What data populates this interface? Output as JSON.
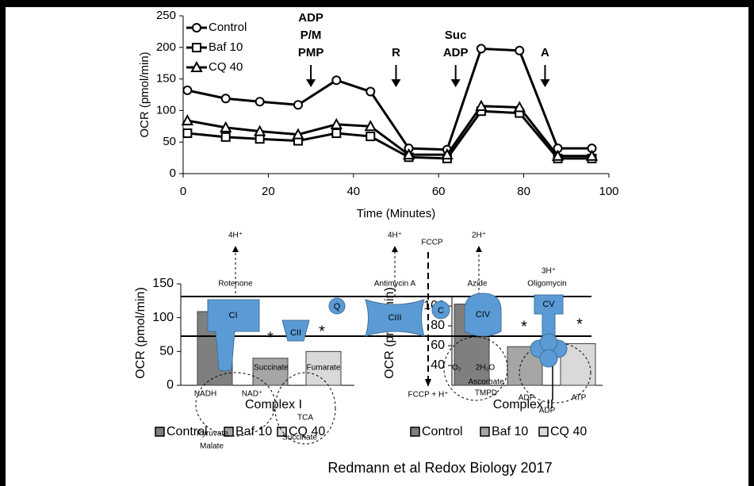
{
  "chart_data": [
    {
      "type": "line",
      "xlabel": "Time (Minutes)",
      "ylabel": "OCR (pmol/min)",
      "xlim": [
        0,
        100
      ],
      "xticks": [
        0,
        20,
        40,
        60,
        80,
        100
      ],
      "ylim": [
        0,
        250
      ],
      "yticks": [
        0,
        50,
        100,
        150,
        200,
        250
      ],
      "x": [
        1,
        10,
        18,
        27,
        36,
        44,
        53,
        62,
        70,
        79,
        88,
        96
      ],
      "series": [
        {
          "name": "Control",
          "color": "#000000",
          "marker": "circle",
          "values": [
            132,
            119,
            114,
            109,
            148,
            130,
            40,
            38,
            198,
            195,
            40,
            40
          ]
        },
        {
          "name": "Baf 10",
          "color": "#000000",
          "marker": "square",
          "values": [
            64,
            58,
            55,
            52,
            64,
            59,
            26,
            24,
            99,
            96,
            24,
            24
          ]
        },
        {
          "name": "CQ 40",
          "color": "#000000",
          "marker": "triangle",
          "values": [
            84,
            73,
            67,
            62,
            78,
            75,
            30,
            30,
            107,
            105,
            28,
            28
          ]
        }
      ],
      "annotations": [
        {
          "x": 30,
          "lines": [
            "ADP",
            "P/M",
            "PMP"
          ]
        },
        {
          "x": 50,
          "lines": [
            "R"
          ]
        },
        {
          "x": 64,
          "lines": [
            "Suc",
            "ADP"
          ]
        },
        {
          "x": 85,
          "lines": [
            "A"
          ]
        }
      ]
    },
    {
      "type": "bar",
      "xlabel": "Complex I",
      "ylabel": "OCR (pmol/min)",
      "categories": [
        null
      ],
      "ylim": [
        0,
        150
      ],
      "yticks": [
        0,
        50,
        100,
        150
      ],
      "series": [
        {
          "name": "Control",
          "color": "#7f7f7f",
          "values": [
            109
          ]
        },
        {
          "name": "Baf 10",
          "color": "#a6a6a6",
          "values": [
            40
          ]
        },
        {
          "name": "CQ 40",
          "color": "#d9d9d9",
          "values": [
            50
          ]
        }
      ]
    },
    {
      "type": "bar",
      "xlabel": "Complex II",
      "ylabel": "OCR (pmol/min)",
      "categories": [
        null
      ],
      "ylim": [
        20,
        110
      ],
      "yticks": [
        40,
        60,
        80,
        100
      ],
      "series": [
        {
          "name": "Control",
          "color": "#7f7f7f",
          "values": [
            102
          ]
        },
        {
          "name": "Baf 10",
          "color": "#a6a6a6",
          "values": [
            59
          ]
        },
        {
          "name": "CQ 40",
          "color": "#d9d9d9",
          "values": [
            62
          ]
        }
      ]
    }
  ],
  "diagram": {
    "labels": [
      "4H⁺",
      "Rotenone",
      "NADH",
      "NAD⁺",
      "Succinate",
      "Fumarate",
      "TCA",
      "Pyruvate",
      "Malate",
      "Succinate",
      "4H⁺",
      "Antimycin A",
      "FCCP",
      "FCCP + H⁺",
      "2H⁺",
      "Azide",
      "3H⁺",
      "Oligomycin",
      "O₂",
      "2H₂O",
      "Ascorbate",
      "TMPD",
      "ADP",
      "ATP",
      "ADP",
      "*",
      "*",
      "*",
      "*",
      "CI",
      "CII",
      "Q",
      "CIII",
      "C",
      "CIV",
      "CV"
    ]
  },
  "footer": "Redmann et al Redox Biology 2017"
}
